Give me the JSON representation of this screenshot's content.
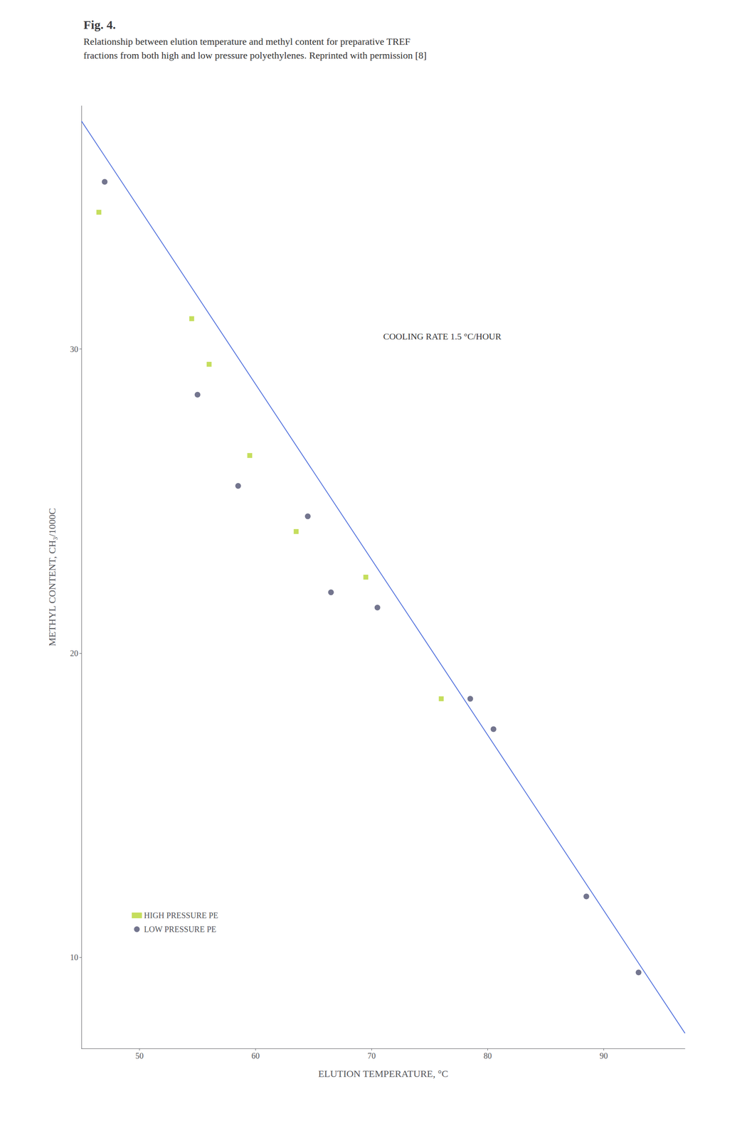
{
  "chart_data": {
    "type": "scatter",
    "title": "Fig. 4.",
    "subtitle": "Relationship between elution temperature and methyl content for preparative TREF\nfractions from both high and low pressure polyethylenes. Reprinted with permission [8]",
    "x_label": "ELUTION TEMPERATURE, °C",
    "y_label": "METHYL CONTENT, CH₃/1000C",
    "annotations": [
      "COOLING RATE 1.5 °C/HOUR"
    ],
    "xlim": [
      45,
      97
    ],
    "ylim": [
      7,
      38
    ],
    "xticks": [
      50,
      60,
      70,
      80,
      90
    ],
    "yticks": [
      10,
      20,
      30
    ],
    "grid": false,
    "legend": "lower left",
    "series": [
      {
        "type": "line",
        "line_style": "solid",
        "x": [
          45,
          97
        ],
        "values": [
          37.5,
          7.5
        ]
      },
      {
        "name": "HIGH PRESSURE PE",
        "type": "scatter",
        "marker": "square",
        "x": [
          46.5,
          54.5,
          56.0,
          59.5,
          63.5,
          69.5,
          76.0
        ],
        "values": [
          34.5,
          31.0,
          29.5,
          26.5,
          24.0,
          22.5,
          18.5
        ]
      },
      {
        "name": "LOW PRESSURE PE",
        "type": "scatter",
        "marker": "circle",
        "x": [
          47.0,
          55.0,
          58.5,
          64.5,
          66.5,
          70.5,
          78.5,
          80.5,
          88.5,
          93.0
        ],
        "values": [
          35.5,
          28.5,
          25.5,
          24.5,
          22.0,
          21.5,
          18.5,
          17.5,
          12.0,
          9.5
        ]
      }
    ]
  }
}
